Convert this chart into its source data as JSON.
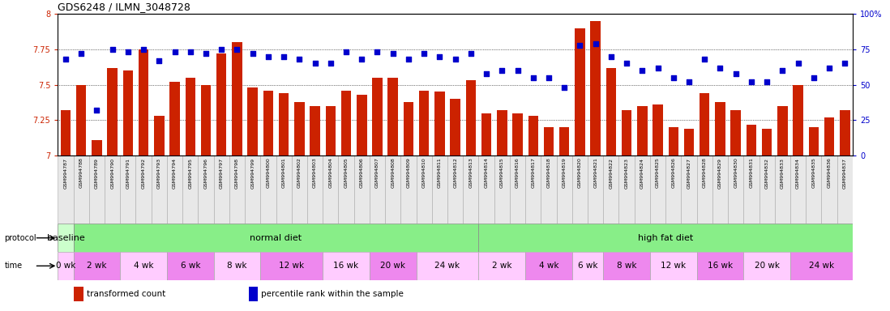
{
  "title": "GDS6248 / ILMN_3048728",
  "gsm_labels": [
    "GSM994787",
    "GSM994788",
    "GSM994789",
    "GSM994790",
    "GSM994791",
    "GSM994792",
    "GSM994793",
    "GSM994794",
    "GSM994795",
    "GSM994796",
    "GSM994797",
    "GSM994798",
    "GSM994799",
    "GSM994800",
    "GSM994801",
    "GSM994802",
    "GSM994803",
    "GSM994804",
    "GSM994805",
    "GSM994806",
    "GSM994807",
    "GSM994808",
    "GSM994809",
    "GSM994810",
    "GSM994811",
    "GSM994812",
    "GSM994813",
    "GSM994814",
    "GSM994815",
    "GSM994816",
    "GSM994817",
    "GSM994818",
    "GSM994819",
    "GSM994820",
    "GSM994821",
    "GSM994822",
    "GSM994823",
    "GSM994824",
    "GSM994825",
    "GSM994826",
    "GSM994827",
    "GSM994828",
    "GSM994829",
    "GSM994830",
    "GSM994831",
    "GSM994832",
    "GSM994833",
    "GSM994834",
    "GSM994835",
    "GSM994836",
    "GSM994837"
  ],
  "bar_values": [
    7.32,
    7.5,
    7.11,
    7.62,
    7.6,
    7.75,
    7.28,
    7.52,
    7.55,
    7.5,
    7.72,
    7.8,
    7.48,
    7.46,
    7.44,
    7.38,
    7.35,
    7.35,
    7.46,
    7.43,
    7.55,
    7.55,
    7.38,
    7.46,
    7.45,
    7.4,
    7.53,
    7.3,
    7.32,
    7.3,
    7.28,
    7.2,
    7.2,
    7.9,
    7.95,
    7.62,
    7.32,
    7.35,
    7.36,
    7.2,
    7.19,
    7.44,
    7.38,
    7.32,
    7.22,
    7.19,
    7.35,
    7.5,
    7.2,
    7.27,
    7.32
  ],
  "percentile_values": [
    68,
    72,
    32,
    75,
    73,
    75,
    67,
    73,
    73,
    72,
    75,
    75,
    72,
    70,
    70,
    68,
    65,
    65,
    73,
    68,
    73,
    72,
    68,
    72,
    70,
    68,
    72,
    58,
    60,
    60,
    55,
    55,
    48,
    78,
    79,
    70,
    65,
    60,
    62,
    55,
    52,
    68,
    62,
    58,
    52,
    52,
    60,
    65,
    55,
    62,
    65
  ],
  "bar_color": "#cc2200",
  "percentile_color": "#0000cc",
  "ylim_left": [
    7.0,
    8.0
  ],
  "ylim_right": [
    0,
    100
  ],
  "yticks_left": [
    7.0,
    7.25,
    7.5,
    7.75,
    8.0
  ],
  "yticks_right": [
    0,
    25,
    50,
    75,
    100
  ],
  "ytick_labels_left": [
    "7",
    "7.25",
    "7.5",
    "7.75",
    "8"
  ],
  "ytick_labels_right": [
    "0",
    "25",
    "50",
    "75",
    "100%"
  ],
  "protocol_groups": [
    {
      "text": "baseline",
      "start": 0,
      "end": 1,
      "facecolor": "#ccffcc",
      "edgecolor": "#888888"
    },
    {
      "text": "normal diet",
      "start": 1,
      "end": 27,
      "facecolor": "#88ee88",
      "edgecolor": "#888888"
    },
    {
      "text": "high fat diet",
      "start": 27,
      "end": 51,
      "facecolor": "#88ee88",
      "edgecolor": "#888888"
    }
  ],
  "time_groups": [
    {
      "text": "0 wk",
      "start": 0,
      "end": 1,
      "facecolor": "#ffccff"
    },
    {
      "text": "2 wk",
      "start": 1,
      "end": 4,
      "facecolor": "#ee88ee"
    },
    {
      "text": "4 wk",
      "start": 4,
      "end": 7,
      "facecolor": "#ffccff"
    },
    {
      "text": "6 wk",
      "start": 7,
      "end": 10,
      "facecolor": "#ee88ee"
    },
    {
      "text": "8 wk",
      "start": 10,
      "end": 13,
      "facecolor": "#ffccff"
    },
    {
      "text": "12 wk",
      "start": 13,
      "end": 17,
      "facecolor": "#ee88ee"
    },
    {
      "text": "16 wk",
      "start": 17,
      "end": 20,
      "facecolor": "#ffccff"
    },
    {
      "text": "20 wk",
      "start": 20,
      "end": 23,
      "facecolor": "#ee88ee"
    },
    {
      "text": "24 wk",
      "start": 23,
      "end": 27,
      "facecolor": "#ffccff"
    },
    {
      "text": "2 wk",
      "start": 27,
      "end": 30,
      "facecolor": "#ffccff"
    },
    {
      "text": "4 wk",
      "start": 30,
      "end": 33,
      "facecolor": "#ee88ee"
    },
    {
      "text": "6 wk",
      "start": 33,
      "end": 35,
      "facecolor": "#ffccff"
    },
    {
      "text": "8 wk",
      "start": 35,
      "end": 38,
      "facecolor": "#ee88ee"
    },
    {
      "text": "12 wk",
      "start": 38,
      "end": 41,
      "facecolor": "#ffccff"
    },
    {
      "text": "16 wk",
      "start": 41,
      "end": 44,
      "facecolor": "#ee88ee"
    },
    {
      "text": "20 wk",
      "start": 44,
      "end": 47,
      "facecolor": "#ffccff"
    },
    {
      "text": "24 wk",
      "start": 47,
      "end": 51,
      "facecolor": "#ee88ee"
    }
  ],
  "legend_items": [
    {
      "label": "transformed count",
      "color": "#cc2200"
    },
    {
      "label": "percentile rank within the sample",
      "color": "#0000cc"
    }
  ],
  "background_color": "#ffffff"
}
